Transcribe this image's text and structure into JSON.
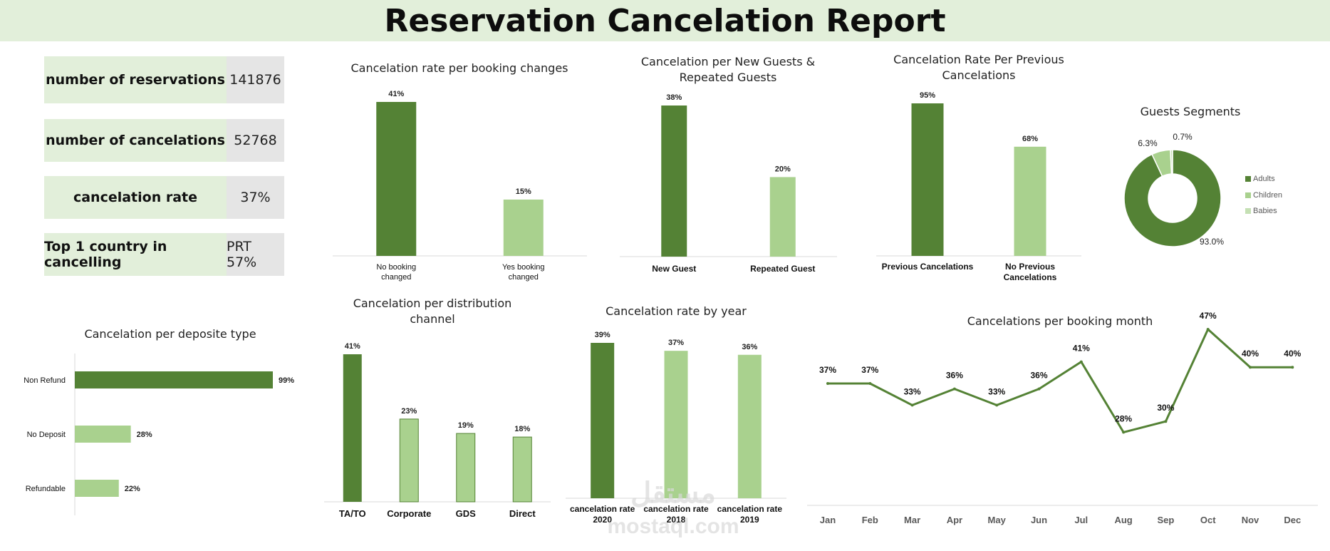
{
  "header": {
    "title": "Reservation Cancelation Report"
  },
  "colors": {
    "dark": "#548235",
    "light": "#a9d18e",
    "lighter": "#c5e0b4",
    "banner": "#e2efda",
    "kpi_value_bg": "#e5e5e5"
  },
  "kpis": [
    {
      "label": "number of reservations",
      "value": "141876"
    },
    {
      "label": "number of cancelations",
      "value": "52768"
    },
    {
      "label": "cancelation rate",
      "value": "37%"
    },
    {
      "label": "Top 1 country in cancelling",
      "value": "PRT 57%"
    }
  ],
  "watermark": {
    "arabic": "مستقل",
    "latin": "mostaql.com"
  },
  "chart_data": [
    {
      "id": "booking_changes",
      "type": "bar",
      "title": "Cancelation rate per booking changes",
      "categories": [
        "No booking changed",
        "Yes booking changed"
      ],
      "values": [
        41,
        15
      ],
      "value_labels": [
        "41%",
        "15%"
      ]
    },
    {
      "id": "new_vs_repeated",
      "type": "bar",
      "title": "Cancelation per New Guests & Repeated Guests",
      "categories": [
        "New Guest",
        "Repeated Guest"
      ],
      "values": [
        38,
        20
      ],
      "value_labels": [
        "38%",
        "20%"
      ]
    },
    {
      "id": "previous_cancelations",
      "type": "bar",
      "title": "Cancelation Rate Per Previous Cancelations",
      "categories": [
        "Previous Cancelations",
        "No Previous Cancelations"
      ],
      "values": [
        95,
        68
      ],
      "value_labels": [
        "95%",
        "68%"
      ]
    },
    {
      "id": "guests_segments",
      "type": "pie",
      "title": "Guests Segments",
      "legend": "right",
      "labels": [
        "Adults",
        "Children",
        "Babies"
      ],
      "values": [
        93.0,
        6.3,
        0.7
      ],
      "value_labels": [
        "93.0%",
        "6.3%",
        "0.7%"
      ]
    },
    {
      "id": "deposit_type",
      "type": "bar",
      "orientation": "horizontal",
      "title": "Cancelation per deposite type",
      "categories": [
        "Non Refund",
        "No Deposit",
        "Refundable"
      ],
      "values": [
        99,
        28,
        22
      ],
      "value_labels": [
        "99%",
        "28%",
        "22%"
      ]
    },
    {
      "id": "distribution_channel",
      "type": "bar",
      "title": "Cancelation per distribution channel",
      "categories": [
        "TA/TO",
        "Corporate",
        "GDS",
        "Direct"
      ],
      "values": [
        41,
        23,
        19,
        18
      ],
      "value_labels": [
        "41%",
        "23%",
        "19%",
        "18%"
      ]
    },
    {
      "id": "by_year",
      "type": "bar",
      "title": "Cancelation rate by year",
      "categories": [
        "cancelation rate 2020",
        "cancelation rate 2018",
        "cancelation rate 2019"
      ],
      "values": [
        39,
        37,
        36
      ],
      "value_labels": [
        "39%",
        "37%",
        "36%"
      ]
    },
    {
      "id": "booking_month",
      "type": "line",
      "title": "Cancelations per booking month",
      "categories": [
        "Jan",
        "Feb",
        "Mar",
        "Apr",
        "May",
        "Jun",
        "Jul",
        "Aug",
        "Sep",
        "Oct",
        "Nov",
        "Dec"
      ],
      "values": [
        37,
        37,
        33,
        36,
        33,
        36,
        41,
        28,
        30,
        47,
        40,
        40
      ],
      "value_labels": [
        "37%",
        "37%",
        "33%",
        "36%",
        "33%",
        "36%",
        "41%",
        "28%",
        "30%",
        "47%",
        "40%",
        "40%"
      ]
    }
  ]
}
